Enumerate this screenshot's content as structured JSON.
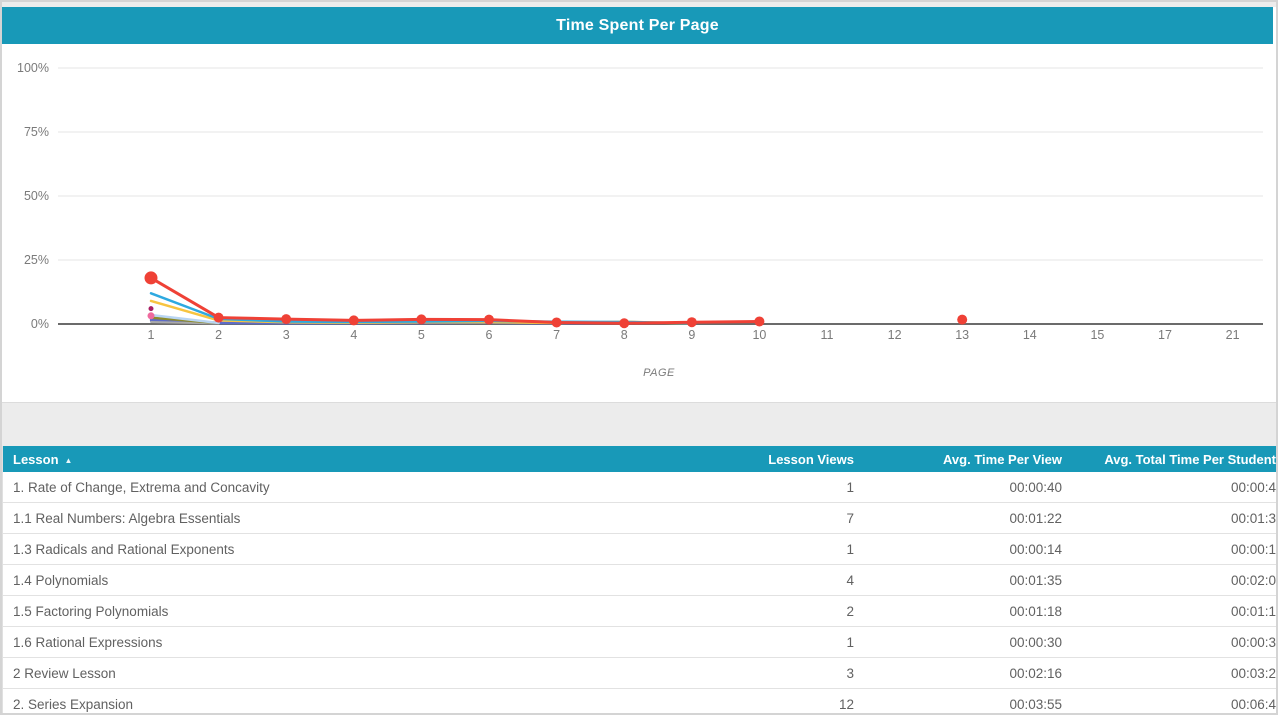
{
  "header": {
    "title": "Time Spent Per Page"
  },
  "colors": {
    "accent_teal": "#1899b8",
    "grid_line": "#e4e4e4",
    "axis_line": "#6b6b6b",
    "tick_text": "#7a7a7a",
    "row_text": "#616161"
  },
  "chart_data": {
    "type": "line",
    "title": "Time Spent Per Page",
    "xlabel": "PAGE",
    "ylabel": "",
    "ylim": [
      0,
      100
    ],
    "grid": true,
    "legend": "none",
    "y_tick_values": [
      100,
      75,
      50,
      25,
      0
    ],
    "y_tick_labels": [
      "100%",
      "75%",
      "50%",
      "25%",
      "0%"
    ],
    "x_tick_labels": [
      "1",
      "2",
      "3",
      "4",
      "5",
      "6",
      "7",
      "8",
      "9",
      "10",
      "11",
      "12",
      "13",
      "14",
      "15",
      "17",
      "21"
    ],
    "series": [
      {
        "name": "series-royalblue",
        "color": "#4b6bdc",
        "width": 2,
        "points": [
          [
            1,
            1.2
          ],
          [
            2,
            0.3
          ],
          [
            3,
            0.25
          ],
          [
            4,
            0.25
          ],
          [
            5,
            0.3
          ],
          [
            6,
            0.4
          ],
          [
            7,
            0.25
          ],
          [
            8,
            0.2
          ]
        ]
      },
      {
        "name": "series-indigo",
        "color": "#5d6bc9",
        "width": 2.5,
        "points": [
          [
            1,
            1.6
          ],
          [
            2,
            0.5
          ],
          [
            3,
            0.4
          ],
          [
            4,
            0.4
          ],
          [
            5,
            0.5
          ],
          [
            6,
            0.5
          ],
          [
            7,
            0.3
          ]
        ]
      },
      {
        "name": "series-gray",
        "color": "#a9a9a9",
        "width": 2,
        "points": [
          [
            1,
            0.8
          ],
          [
            2,
            0.2
          ]
        ]
      },
      {
        "name": "series-olive",
        "color": "#8d8b2a",
        "width": 2.5,
        "points": [
          [
            1,
            2.5
          ],
          [
            2,
            0.4
          ]
        ]
      },
      {
        "name": "series-paleblue",
        "color": "#b9d5f2",
        "width": 2.5,
        "points": [
          [
            1,
            3.5
          ],
          [
            2,
            0.4
          ]
        ]
      },
      {
        "name": "series-pink-point",
        "color": "#ef6a9e",
        "width": 0,
        "marker_r": 3.5,
        "points": [
          [
            1,
            3.2
          ]
        ]
      },
      {
        "name": "series-magenta-point",
        "color": "#a81e63",
        "width": 0,
        "marker_r": 2.5,
        "points": [
          [
            1,
            6
          ]
        ]
      },
      {
        "name": "series-yellow",
        "color": "#f7c440",
        "width": 2.5,
        "points": [
          [
            1,
            9
          ],
          [
            2,
            1.4
          ],
          [
            3,
            0.7
          ],
          [
            4,
            0.5
          ],
          [
            5,
            0.7
          ],
          [
            6,
            0.7
          ],
          [
            7,
            0.4
          ],
          [
            8,
            0.9
          ],
          [
            9,
            0.2
          ]
        ]
      },
      {
        "name": "series-blue",
        "color": "#2ea9e0",
        "width": 2.5,
        "points": [
          [
            1,
            12
          ],
          [
            2,
            2.0
          ],
          [
            3,
            1.0
          ],
          [
            4,
            0.8
          ],
          [
            5,
            1.0
          ],
          [
            6,
            1.2
          ],
          [
            7,
            0.9
          ],
          [
            8,
            0.8
          ],
          [
            9,
            0.3
          ]
        ]
      },
      {
        "name": "series-red",
        "color": "#ef4136",
        "width": 3,
        "marker_r": 5,
        "first_marker_r": 6.5,
        "points": [
          [
            1,
            18
          ],
          [
            2,
            2.5
          ],
          [
            3,
            1.9
          ],
          [
            4,
            1.4
          ],
          [
            5,
            1.8
          ],
          [
            6,
            1.7
          ],
          [
            7,
            0.6
          ],
          [
            8,
            0.3
          ],
          [
            9,
            0.7
          ],
          [
            10,
            1.0
          ],
          [
            13,
            1.7
          ]
        ]
      }
    ]
  },
  "table": {
    "columns": [
      "Lesson",
      "Lesson Views",
      "Avg. Time Per View",
      "Avg. Total Time Per Student"
    ],
    "sort": {
      "column": "Lesson",
      "direction": "asc",
      "arrow": "▲"
    },
    "rows": [
      {
        "lesson": "1. Rate of Change, Extrema and Concavity",
        "views": "1",
        "avg_time_per_view": "00:00:40",
        "avg_total_time_per_student": "00:00:4"
      },
      {
        "lesson": "1.1 Real Numbers: Algebra Essentials",
        "views": "7",
        "avg_time_per_view": "00:01:22",
        "avg_total_time_per_student": "00:01:3"
      },
      {
        "lesson": "1.3 Radicals and Rational Exponents",
        "views": "1",
        "avg_time_per_view": "00:00:14",
        "avg_total_time_per_student": "00:00:1"
      },
      {
        "lesson": "1.4 Polynomials",
        "views": "4",
        "avg_time_per_view": "00:01:35",
        "avg_total_time_per_student": "00:02:0"
      },
      {
        "lesson": "1.5 Factoring Polynomials",
        "views": "2",
        "avg_time_per_view": "00:01:18",
        "avg_total_time_per_student": "00:01:1"
      },
      {
        "lesson": "1.6 Rational Expressions",
        "views": "1",
        "avg_time_per_view": "00:00:30",
        "avg_total_time_per_student": "00:00:3"
      },
      {
        "lesson": "2 Review Lesson",
        "views": "3",
        "avg_time_per_view": "00:02:16",
        "avg_total_time_per_student": "00:03:2"
      },
      {
        "lesson": "2. Series Expansion",
        "views": "12",
        "avg_time_per_view": "00:03:55",
        "avg_total_time_per_student": "00:06:4"
      }
    ]
  }
}
